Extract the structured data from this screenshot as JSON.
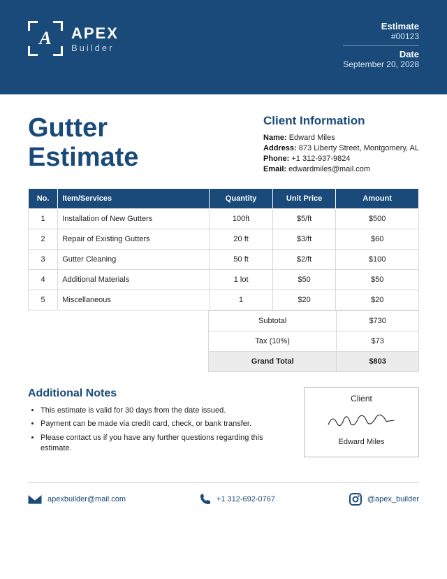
{
  "colors": {
    "primary": "#1a4a7a",
    "text": "#222222",
    "border": "#d8d8d8",
    "lightbg": "#ececec",
    "white": "#ffffff"
  },
  "brand": {
    "name": "APEX",
    "sub": "Builder",
    "glyph": "A"
  },
  "header": {
    "estimate_label": "Estimate",
    "estimate_number": "#00123",
    "date_label": "Date",
    "date_value": "September 20, 2028"
  },
  "doc_title_line1": "Gutter",
  "doc_title_line2": "Estimate",
  "client": {
    "heading": "Client Information",
    "name_label": "Name:",
    "name": "Edward Miles",
    "address_label": "Address:",
    "address": "873 Liberty Street, Montgomery, AL",
    "phone_label": "Phone:",
    "phone": "+1 312-937-9824",
    "email_label": "Email:",
    "email": "edwardmiles@mail.com"
  },
  "table": {
    "columns": [
      "No.",
      "Item/Services",
      "Quantity",
      "Unit Price",
      "Amount"
    ],
    "rows": [
      [
        "1",
        "Installation of New Gutters",
        "100ft",
        "$5/ft",
        "$500"
      ],
      [
        "2",
        "Repair of Existing Gutters",
        "20 ft",
        "$3/ft",
        "$60"
      ],
      [
        "3",
        "Gutter Cleaning",
        "50 ft",
        "$2/ft",
        "$100"
      ],
      [
        "4",
        "Additional Materials",
        "1 lot",
        "$50",
        "$50"
      ],
      [
        "5",
        "Miscellaneous",
        "1",
        "$20",
        "$20"
      ]
    ]
  },
  "totals": {
    "subtotal_label": "Subtotal",
    "subtotal": "$730",
    "tax_label": "Tax (10%)",
    "tax": "$73",
    "grand_label": "Grand Total",
    "grand": "$803"
  },
  "notes": {
    "heading": "Additional Notes",
    "items": [
      "This estimate is valid for 30 days from the date issued.",
      "Payment can be made via credit card, check, or bank transfer.",
      "Please contact us if you have any further questions regarding this estimate."
    ]
  },
  "signature": {
    "title": "Client",
    "name": "Edward Miles"
  },
  "footer": {
    "email": "apexbuilder@mail.com",
    "phone": "+1 312-692-0767",
    "social": "@apex_builder"
  }
}
